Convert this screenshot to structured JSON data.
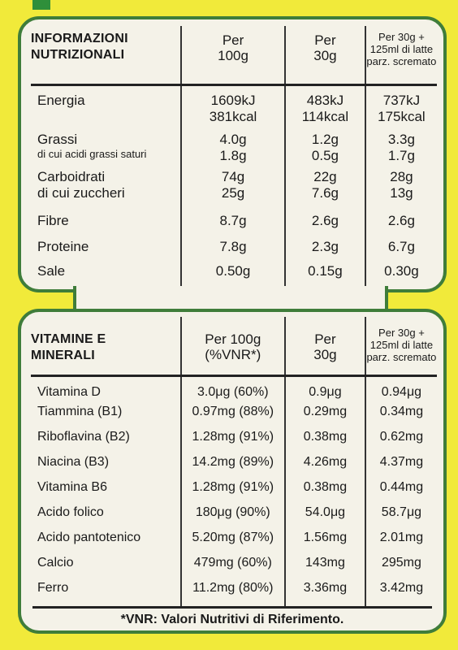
{
  "nutrition": {
    "header": {
      "title_line1": "INFORMAZIONI",
      "title_line2": "NUTRIZIONALI",
      "col1_line1": "Per",
      "col1_line2": "100g",
      "col2_line1": "Per",
      "col2_line2": "30g",
      "col3_line1": "Per 30g +",
      "col3_line2": "125ml di latte",
      "col3_line3": "parz. scremato"
    },
    "rows": [
      {
        "label": "Energia",
        "v1": "1609kJ",
        "v1b": "381kcal",
        "v2": "483kJ",
        "v2b": "114kcal",
        "v3": "737kJ",
        "v3b": "175kcal"
      },
      {
        "label": "Grassi",
        "sublabel": "di cui acidi grassi saturi",
        "v1": "4.0g",
        "v1b": "1.8g",
        "v2": "1.2g",
        "v2b": "0.5g",
        "v3": "3.3g",
        "v3b": "1.7g"
      },
      {
        "label": "Carboidrati",
        "sublabel": "di cui zuccheri",
        "v1": "74g",
        "v1b": "25g",
        "v2": "22g",
        "v2b": "7.6g",
        "v3": "28g",
        "v3b": "13g"
      },
      {
        "label": "Fibre",
        "v1": "8.7g",
        "v2": "2.6g",
        "v3": "2.6g"
      },
      {
        "label": "Proteine",
        "v1": "7.8g",
        "v2": "2.3g",
        "v3": "6.7g"
      },
      {
        "label": "Sale",
        "v1": "0.50g",
        "v2": "0.15g",
        "v3": "0.30g"
      }
    ]
  },
  "vitamins": {
    "header": {
      "title_line1": "VITAMINE E",
      "title_line2": "MINERALI",
      "col1_line1": "Per 100g",
      "col1_line2": "(%VNR*)",
      "col2_line1": "Per",
      "col2_line2": "30g",
      "col3_line1": "Per 30g +",
      "col3_line2": "125ml di latte",
      "col3_line3": "parz. scremato"
    },
    "rows": [
      {
        "label": "Vitamina D",
        "v1": "3.0μg (60%)",
        "v2": "0.9μg",
        "v3": "0.94μg"
      },
      {
        "label": "Tiammina (B1)",
        "v1": "0.97mg (88%)",
        "v2": "0.29mg",
        "v3": "0.34mg"
      },
      {
        "label": "Riboflavina (B2)",
        "v1": "1.28mg (91%)",
        "v2": "0.38mg",
        "v3": "0.62mg"
      },
      {
        "label": "Niacina (B3)",
        "v1": "14.2mg (89%)",
        "v2": "4.26mg",
        "v3": "4.37mg"
      },
      {
        "label": "Vitamina B6",
        "v1": "1.28mg (91%)",
        "v2": "0.38mg",
        "v3": "0.44mg"
      },
      {
        "label": "Acido folico",
        "v1": "180μg (90%)",
        "v2": "54.0μg",
        "v3": "58.7μg"
      },
      {
        "label": "Acido pantotenico",
        "v1": "5.20mg (87%)",
        "v2": "1.56mg",
        "v3": "2.01mg"
      },
      {
        "label": "Calcio",
        "v1": "479mg (60%)",
        "v2": "143mg",
        "v3": "295mg"
      },
      {
        "label": "Ferro",
        "v1": "11.2mg (80%)",
        "v2": "3.36mg",
        "v3": "3.42mg"
      }
    ],
    "footer": "*VNR: Valori Nutritivi di Riferimento."
  }
}
